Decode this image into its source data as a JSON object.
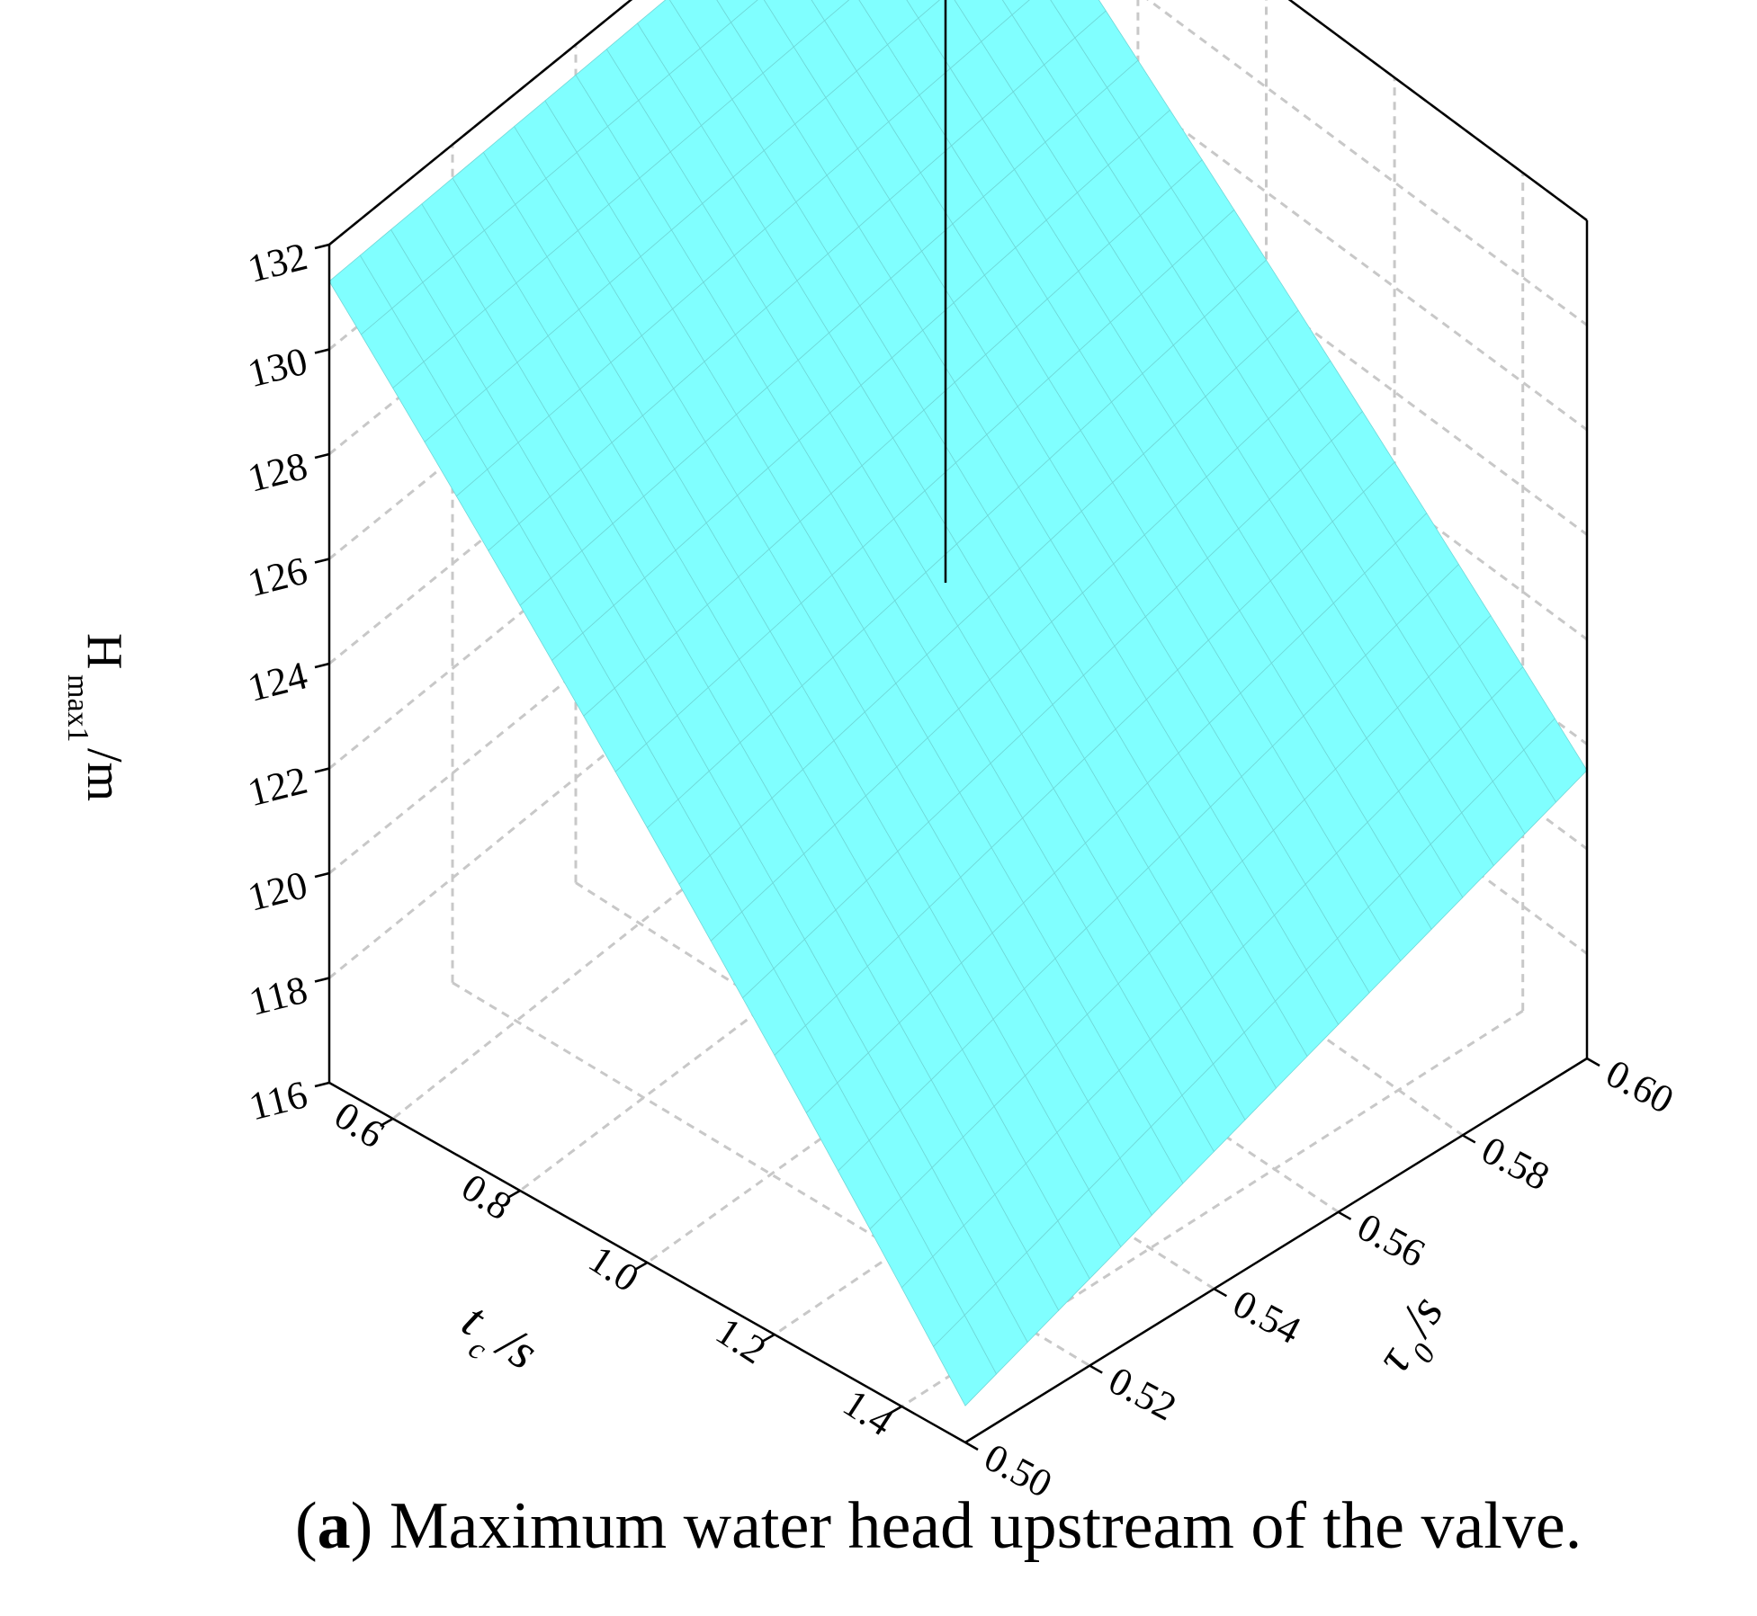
{
  "caption": {
    "tag": "a",
    "text": "Maximum water head upstream of the valve."
  },
  "chart_data": {
    "type": "surface",
    "zlabel": {
      "main": "H",
      "sub": "max1",
      "unit": "/m"
    },
    "xlabel": {
      "main": "t",
      "sub": "c",
      "unit": "/s"
    },
    "ylabel": {
      "main": "τ",
      "sub": "0",
      "unit": "/s"
    },
    "z_ticks": [
      "116",
      "118",
      "120",
      "122",
      "124",
      "126",
      "128",
      "130",
      "132"
    ],
    "z_range": [
      116,
      132
    ],
    "tc_ticks": [
      "0.6",
      "0.8",
      "1.0",
      "1.2",
      "1.4"
    ],
    "tc_range": [
      0.5,
      1.5
    ],
    "tau_ticks": [
      "0.50",
      "0.52",
      "0.54",
      "0.56",
      "0.58",
      "0.60"
    ],
    "tau_range": [
      0.5,
      0.6
    ],
    "grid": true,
    "surface_color": "#80ffff",
    "mesh_color": "#6fd7d7",
    "corner_values": {
      "tc_0.5_tau_0.60": 131.6,
      "tc_0.5_tau_0.50": 131.3,
      "tc_1.5_tau_0.60": 121.5,
      "tc_1.5_tau_0.50": 116.7
    }
  }
}
